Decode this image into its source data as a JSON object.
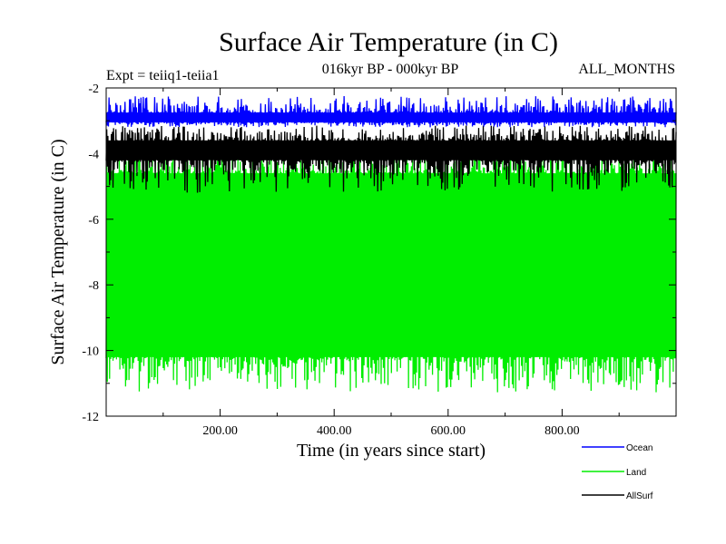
{
  "chart_data": {
    "type": "line",
    "title": "Surface Air Temperature (in C)",
    "subtitle": "016kyr BP - 000kyr BP",
    "left_label": "Expt = teiiq1-teiia1",
    "right_label": "ALL_MONTHS",
    "xlabel": "Time (in years since start)",
    "ylabel": "Surface Air Temperature (in C)",
    "xlim": [
      0,
      1000
    ],
    "ylim": [
      -12,
      -2
    ],
    "x_ticks": [
      200,
      400,
      600,
      800
    ],
    "x_tick_labels": [
      "200.00",
      "400.00",
      "600.00",
      "800.00"
    ],
    "y_ticks": [
      -12,
      -10,
      -8,
      -6,
      -4,
      -2
    ],
    "y_tick_labels": [
      "-12",
      "-10",
      "-8",
      "-6",
      "-4",
      "-2"
    ],
    "grid": false,
    "legend_position": "bottom-right",
    "series": [
      {
        "name": "Land",
        "color": "#00ee00",
        "base": -4.6,
        "low": -10.2,
        "low_min": -11.3,
        "high_max": -3.9
      },
      {
        "name": "AllSurf",
        "color": "#000000",
        "base": -3.6,
        "low": -4.2,
        "low_min": -5.2,
        "high_max": -3.15
      },
      {
        "name": "Ocean",
        "color": "#0000ff",
        "base": -2.75,
        "low": -3.05,
        "low_min": -3.2,
        "high_max": -2.25
      }
    ],
    "legend": [
      {
        "name": "Ocean",
        "color": "#0000ff"
      },
      {
        "name": "Land",
        "color": "#00ee00"
      },
      {
        "name": "AllSurf",
        "color": "#000000"
      }
    ]
  }
}
